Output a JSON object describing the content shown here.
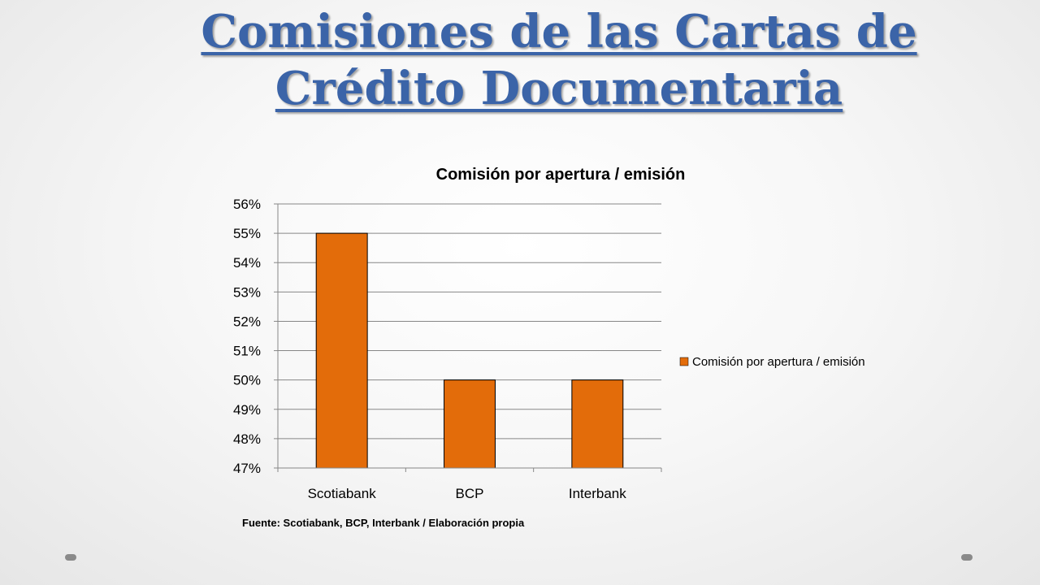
{
  "slide": {
    "title_line1": "Comisiones de las Cartas de",
    "title_line2": "Crédito Documentaria",
    "source": "Fuente: Scotiabank, BCP, Interbank / Elaboración propia"
  },
  "colors": {
    "title": "#3b64a8",
    "bar": "#e36c0a",
    "bar_border": "#000000",
    "grid": "#878787"
  },
  "chart_data": {
    "type": "bar",
    "title": "Comisión por apertura / emisión",
    "categories": [
      "Scotiabank",
      "BCP",
      "Interbank"
    ],
    "series": [
      {
        "name": "Comisión por apertura / emisión",
        "values": [
          55,
          50,
          50
        ]
      }
    ],
    "ylim": [
      47,
      56
    ],
    "yticks": [
      "47%",
      "48%",
      "49%",
      "50%",
      "51%",
      "52%",
      "53%",
      "54%",
      "55%",
      "56%"
    ],
    "grid": true,
    "legend": "right"
  }
}
